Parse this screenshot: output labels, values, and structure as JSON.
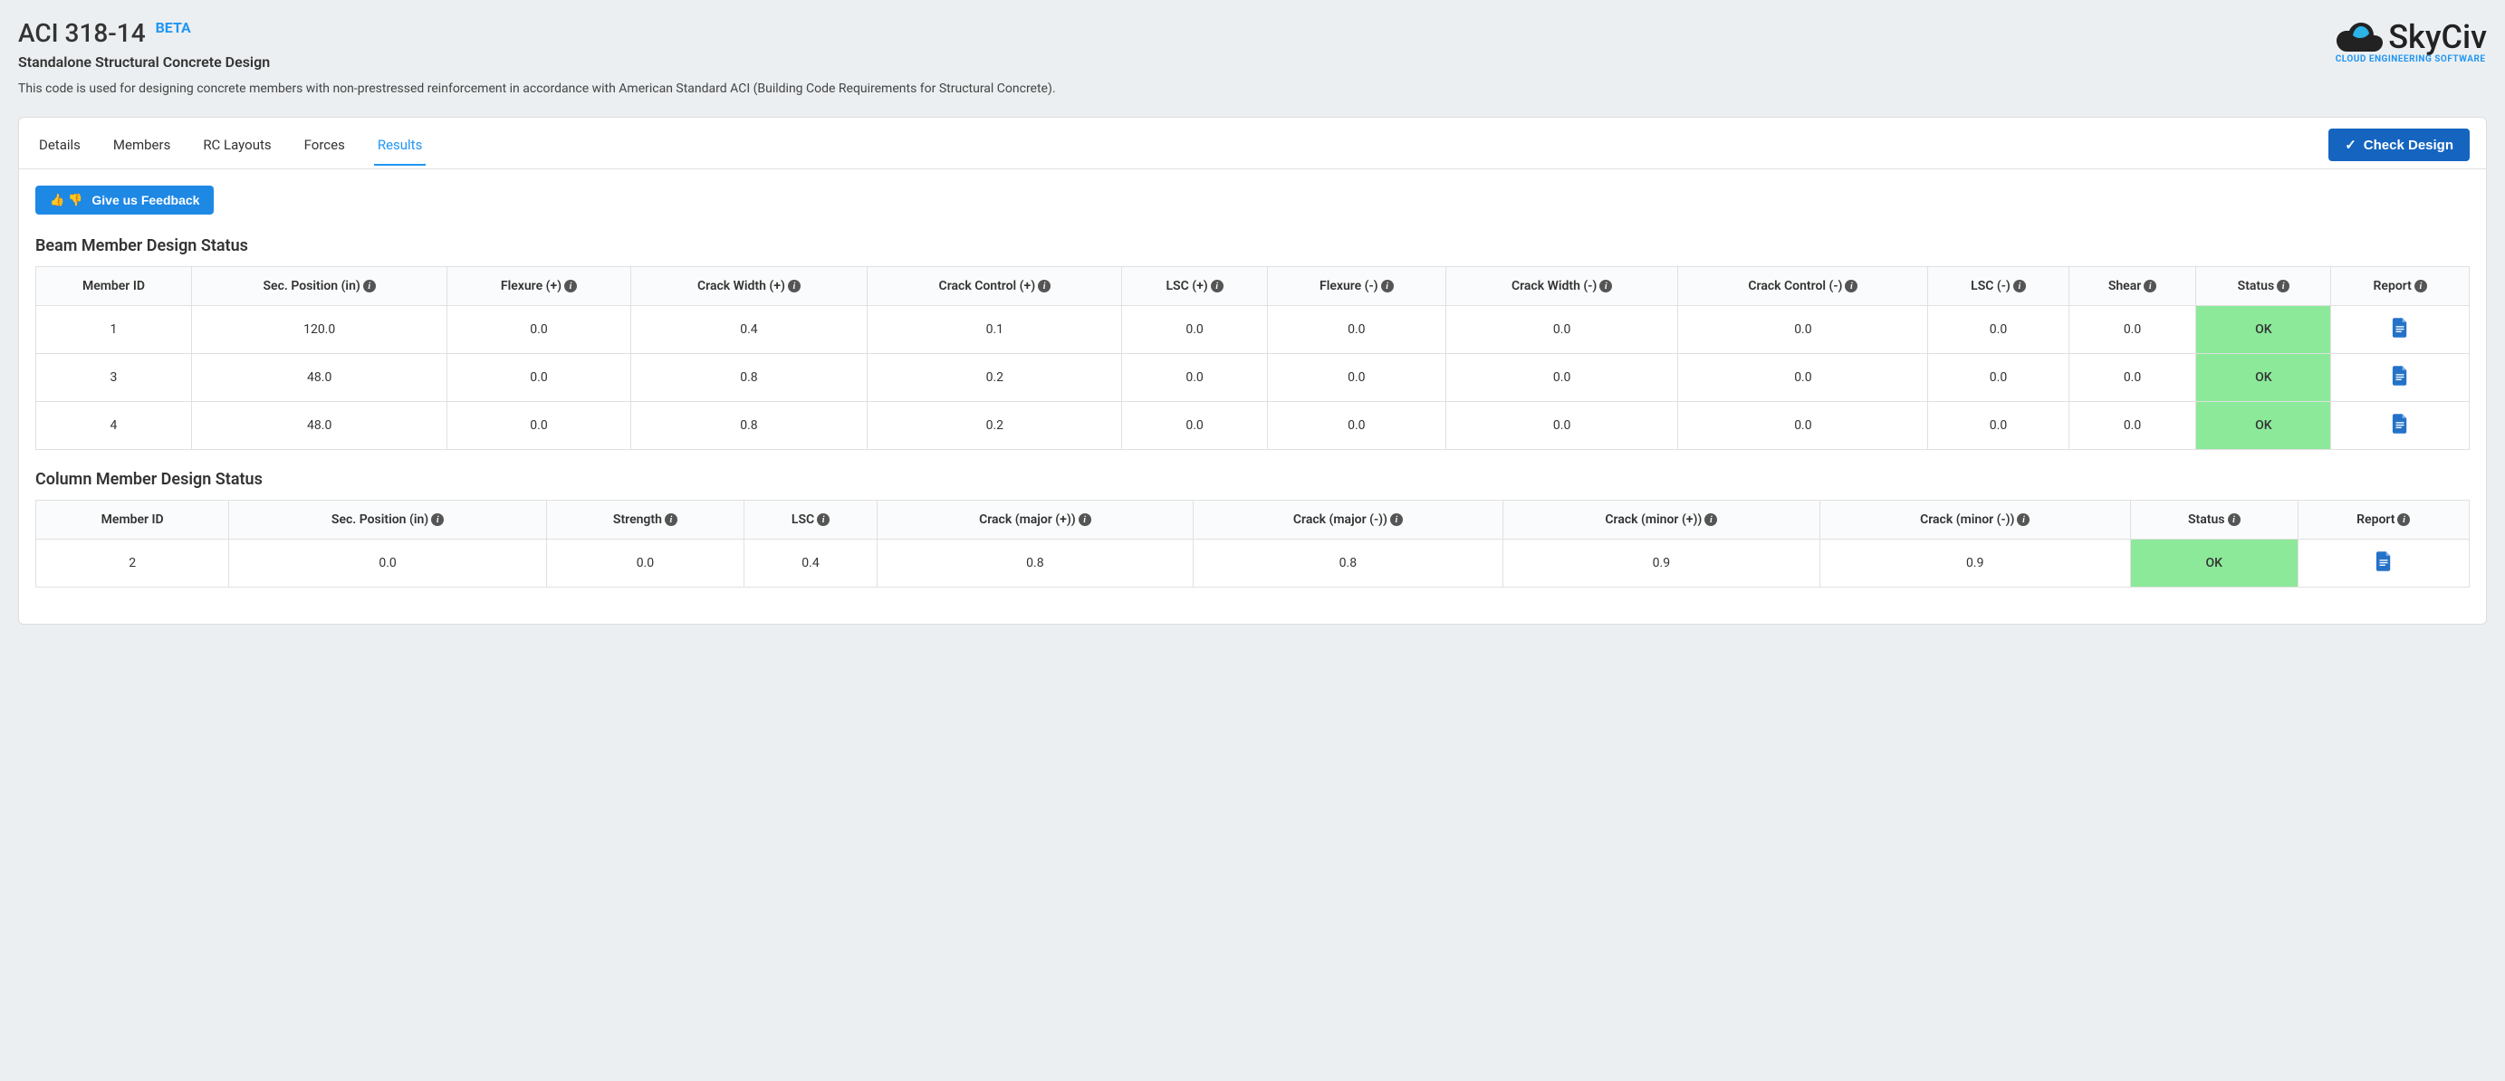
{
  "header": {
    "title": "ACI 318-14",
    "badge": "BETA",
    "subtitle": "Standalone Structural Concrete Design",
    "description": "This code is used for designing concrete members with non-prestressed reinforcement in accordance with American Standard ACI (Building Code Requirements for Structural Concrete).",
    "logo_text": "SkyCiv",
    "logo_tagline": "CLOUD ENGINEERING SOFTWARE"
  },
  "tabs": {
    "items": [
      "Details",
      "Members",
      "RC Layouts",
      "Forces",
      "Results"
    ],
    "active_index": 4
  },
  "buttons": {
    "check_design": "Check Design",
    "feedback": "Give us Feedback"
  },
  "sections": {
    "beam_title": "Beam Member Design Status",
    "column_title": "Column Member Design Status"
  },
  "beam_table": {
    "columns": [
      "Member ID",
      "Sec. Position (in)",
      "Flexure (+)",
      "Crack Width (+)",
      "Crack Control (+)",
      "LSC (+)",
      "Flexure (-)",
      "Crack Width (-)",
      "Crack Control (-)",
      "LSC (-)",
      "Shear",
      "Status",
      "Report"
    ],
    "info_cols": [
      false,
      true,
      true,
      true,
      true,
      true,
      true,
      true,
      true,
      true,
      true,
      true,
      true
    ],
    "rows": [
      [
        "1",
        "120.0",
        "0.0",
        "0.4",
        "0.1",
        "0.0",
        "0.0",
        "0.0",
        "0.0",
        "0.0",
        "0.0",
        "OK",
        ""
      ],
      [
        "3",
        "48.0",
        "0.0",
        "0.8",
        "0.2",
        "0.0",
        "0.0",
        "0.0",
        "0.0",
        "0.0",
        "0.0",
        "OK",
        ""
      ],
      [
        "4",
        "48.0",
        "0.0",
        "0.8",
        "0.2",
        "0.0",
        "0.0",
        "0.0",
        "0.0",
        "0.0",
        "0.0",
        "OK",
        ""
      ]
    ],
    "status_col": 11,
    "report_col": 12
  },
  "column_table": {
    "columns": [
      "Member ID",
      "Sec. Position (in)",
      "Strength",
      "LSC",
      "Crack (major (+))",
      "Crack (major (-))",
      "Crack (minor (+))",
      "Crack (minor (-))",
      "Status",
      "Report"
    ],
    "info_cols": [
      false,
      true,
      true,
      true,
      true,
      true,
      true,
      true,
      true,
      true
    ],
    "rows": [
      [
        "2",
        "0.0",
        "0.0",
        "0.4",
        "0.8",
        "0.8",
        "0.9",
        "0.9",
        "OK",
        ""
      ]
    ],
    "status_col": 8,
    "report_col": 9
  },
  "colors": {
    "accent": "#2196f3",
    "primary_btn": "#1565c0",
    "secondary_btn": "#1e88e5",
    "status_ok_bg": "#8ce99a",
    "page_bg": "#eceff1",
    "card_bg": "#ffffff",
    "border": "#e0e0e0"
  }
}
